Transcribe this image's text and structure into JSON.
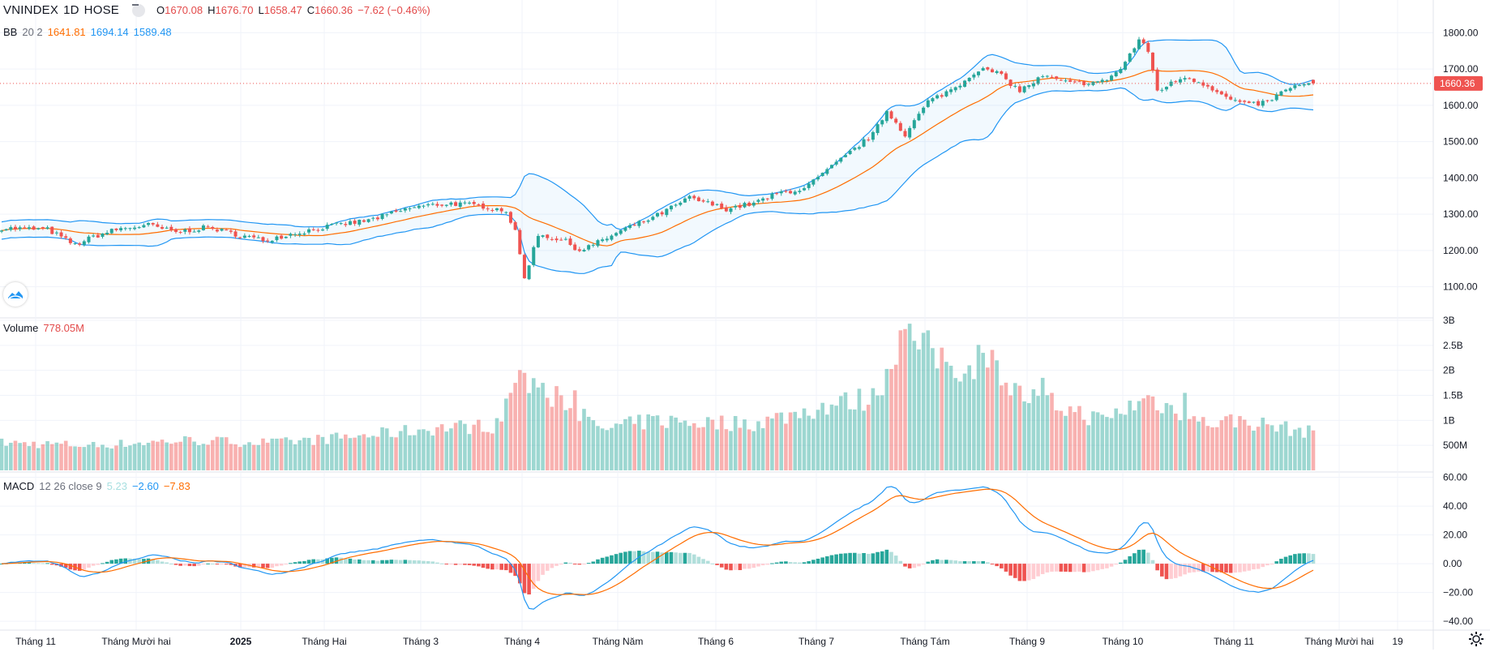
{
  "legend": {
    "symbol": "VNINDEX",
    "interval": "1D",
    "exchange": "HOSE",
    "o_label": "O",
    "o": "1670.08",
    "h_label": "H",
    "h": "1676.70",
    "l_label": "L",
    "l": "1658.47",
    "c_label": "C",
    "c": "1660.36",
    "change": "−7.62 (−0.46%)"
  },
  "bb_legend": {
    "name": "BB",
    "params": "20 2",
    "basis": "1641.81",
    "upper": "1694.14",
    "lower": "1589.48"
  },
  "volume_legend": {
    "name": "Volume",
    "value": "778.05M"
  },
  "macd_legend": {
    "name": "MACD",
    "params": "12 26 close 9",
    "hist": "5.23",
    "macd": "−2.60",
    "signal": "−7.83"
  },
  "price_badge": "1660.36",
  "colors": {
    "up": "#26a69a",
    "down": "#ef5350",
    "bb_band": "#2196f3",
    "bb_basis": "#ff6d00",
    "macd": "#2196f3",
    "signal": "#ff6d00"
  },
  "chart_data": {
    "type": "candlestick",
    "x_tick_labels": [
      "Tháng 11",
      "Tháng Mười hai",
      "2025",
      "Tháng Hai",
      "Tháng 3",
      "Tháng 4",
      "Tháng Năm",
      "Tháng 6",
      "Tháng 7",
      "Tháng Tám",
      "Tháng 9",
      "Tháng 10",
      "Tháng 11",
      "Tháng Mười hai",
      "19"
    ],
    "price_axis": {
      "ticks": [
        "1100.00",
        "1200.00",
        "1300.00",
        "1400.00",
        "1500.00",
        "1600.00",
        "1700.00",
        "1800.00"
      ],
      "ylim": [
        1030,
        1850
      ]
    },
    "volume_axis": {
      "ticks": [
        "500M",
        "1B",
        "1.5B",
        "2B",
        "2.5B",
        "3B"
      ],
      "ylim": [
        0,
        3000000000
      ]
    },
    "macd_axis": {
      "ticks": [
        "−40.00",
        "−20.00",
        "0.00",
        "20.00",
        "40.00",
        "60.00"
      ],
      "ylim": [
        -45,
        62
      ]
    },
    "close_anchors": [
      [
        0,
        1262
      ],
      [
        10,
        1258
      ],
      [
        16,
        1215
      ],
      [
        20,
        1238
      ],
      [
        25,
        1258
      ],
      [
        32,
        1270
      ],
      [
        38,
        1250
      ],
      [
        45,
        1264
      ],
      [
        50,
        1248
      ],
      [
        57,
        1228
      ],
      [
        64,
        1248
      ],
      [
        72,
        1268
      ],
      [
        80,
        1283
      ],
      [
        90,
        1320
      ],
      [
        98,
        1330
      ],
      [
        105,
        1322
      ],
      [
        110,
        1310
      ],
      [
        112,
        1250
      ],
      [
        114,
        1125
      ],
      [
        117,
        1245
      ],
      [
        123,
        1225
      ],
      [
        126,
        1200
      ],
      [
        130,
        1222
      ],
      [
        136,
        1260
      ],
      [
        142,
        1290
      ],
      [
        150,
        1345
      ],
      [
        158,
        1315
      ],
      [
        164,
        1330
      ],
      [
        170,
        1360
      ],
      [
        175,
        1370
      ],
      [
        180,
        1420
      ],
      [
        186,
        1480
      ],
      [
        190,
        1520
      ],
      [
        193,
        1585
      ],
      [
        197,
        1520
      ],
      [
        202,
        1610
      ],
      [
        208,
        1650
      ],
      [
        213,
        1700
      ],
      [
        217,
        1690
      ],
      [
        222,
        1640
      ],
      [
        227,
        1680
      ],
      [
        233,
        1660
      ],
      [
        240,
        1665
      ],
      [
        244,
        1700
      ],
      [
        248,
        1780
      ],
      [
        250,
        1750
      ],
      [
        252,
        1640
      ],
      [
        258,
        1680
      ],
      [
        263,
        1655
      ],
      [
        267,
        1620
      ],
      [
        272,
        1600
      ],
      [
        276,
        1610
      ],
      [
        281,
        1650
      ],
      [
        286,
        1660
      ]
    ],
    "volume_anchors": [
      [
        0,
        0.55
      ],
      [
        20,
        0.5
      ],
      [
        40,
        0.6
      ],
      [
        60,
        0.55
      ],
      [
        80,
        0.7
      ],
      [
        95,
        0.85
      ],
      [
        108,
        0.9
      ],
      [
        112,
        1.8
      ],
      [
        114,
        1.85
      ],
      [
        118,
        1.3
      ],
      [
        121,
        1.6
      ],
      [
        130,
        0.8
      ],
      [
        142,
        1.0
      ],
      [
        155,
        0.95
      ],
      [
        165,
        0.95
      ],
      [
        180,
        1.3
      ],
      [
        190,
        1.45
      ],
      [
        197,
        2.7
      ],
      [
        202,
        2.4
      ],
      [
        210,
        2.05
      ],
      [
        214,
        2.3
      ],
      [
        222,
        1.5
      ],
      [
        230,
        1.3
      ],
      [
        240,
        1.0
      ],
      [
        250,
        1.45
      ],
      [
        262,
        0.95
      ],
      [
        270,
        1.0
      ],
      [
        286,
        0.75
      ]
    ],
    "highlight_volumes": [
      [
        114,
        1.95
      ],
      [
        118,
        1.75
      ],
      [
        125,
        1.6
      ],
      [
        196,
        2.8
      ],
      [
        201,
        2.75
      ],
      [
        211,
        2.1
      ],
      [
        214,
        2.35
      ],
      [
        217,
        2.2
      ],
      [
        227,
        1.85
      ],
      [
        258,
        1.55
      ]
    ],
    "n_bars": 287
  }
}
